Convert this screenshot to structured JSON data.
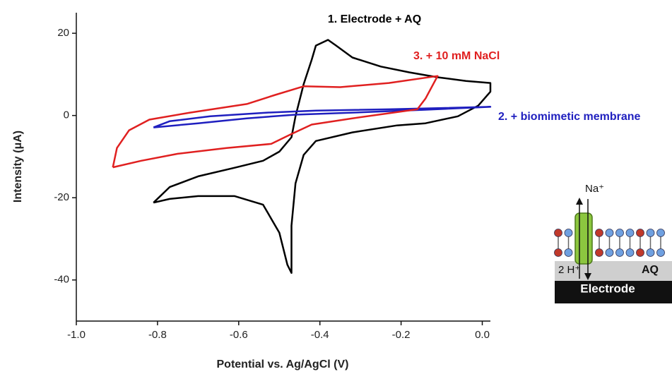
{
  "chart_data": {
    "type": "line",
    "xlabel": "Potential vs. Ag/AgCl (V)",
    "ylabel": "Intensity (μA)",
    "xlim": [
      -1.0,
      0.02
    ],
    "xticks": [
      {
        "value": -1.0,
        "label": "-1.0"
      },
      -0.8,
      -0.6,
      -0.4,
      -0.2,
      {
        "value": 0,
        "label": "0.0"
      }
    ],
    "ylim": [
      -50,
      25
    ],
    "yticks": [
      -40,
      -20,
      0,
      20
    ],
    "series": [
      {
        "name": "1. Electrode + AQ",
        "color": "#000000",
        "x": [
          -0.81,
          -0.77,
          -0.7,
          -0.61,
          -0.54,
          -0.5,
          -0.47,
          -0.46,
          -0.44,
          -0.42,
          -0.41,
          -0.38,
          -0.36,
          -0.32,
          -0.25,
          -0.18,
          -0.11,
          -0.04,
          0.02,
          0.02,
          -0.01,
          -0.06,
          -0.14,
          -0.21,
          -0.32,
          -0.41,
          -0.44,
          -0.46,
          -0.47,
          -0.47,
          -0.48,
          -0.5,
          -0.54,
          -0.61,
          -0.7,
          -0.77,
          -0.81
        ],
        "values": [
          -21.2,
          -17.4,
          -14.8,
          -12.7,
          -11.0,
          -8.8,
          -5.3,
          -0.2,
          7.6,
          13.6,
          17.0,
          18.4,
          17.0,
          14.1,
          11.9,
          10.5,
          9.3,
          8.4,
          7.9,
          5.8,
          2.4,
          -0.2,
          -1.9,
          -2.4,
          -4.1,
          -6.2,
          -9.6,
          -16.5,
          -26.8,
          -38.3,
          -36.3,
          -28.5,
          -21.7,
          -19.6,
          -19.6,
          -20.3,
          -21.2
        ]
      },
      {
        "name": "2. + biomimetic membrane",
        "color": "#1f1fbf",
        "x": [
          -0.81,
          -0.77,
          -0.67,
          -0.53,
          -0.41,
          -0.23,
          0.02,
          -0.14,
          -0.32,
          -0.46,
          -0.58,
          -0.7,
          -0.81
        ],
        "values": [
          -2.9,
          -1.4,
          -0.2,
          0.7,
          1.2,
          1.5,
          2.1,
          1.4,
          0.7,
          0.2,
          -0.7,
          -1.9,
          -2.9
        ]
      },
      {
        "name": "3. +  10 mM NaCl",
        "color": "#e02020",
        "x": [
          -0.91,
          -0.9,
          -0.87,
          -0.82,
          -0.72,
          -0.58,
          -0.51,
          -0.44,
          -0.35,
          -0.23,
          -0.11,
          -0.14,
          -0.16,
          -0.32,
          -0.42,
          -0.47,
          -0.52,
          -0.63,
          -0.75,
          -0.84,
          -0.91
        ],
        "values": [
          -12.6,
          -7.9,
          -3.6,
          -1.0,
          0.7,
          2.8,
          5.0,
          7.1,
          6.9,
          7.9,
          9.6,
          4.1,
          1.5,
          -0.7,
          -2.2,
          -4.5,
          -6.9,
          -7.9,
          -9.3,
          -11.0,
          -12.6
        ]
      }
    ]
  },
  "inset": {
    "cation": "Na⁺",
    "proton": "2 H⁺",
    "layer": "AQ",
    "electrode": "Electrode"
  }
}
